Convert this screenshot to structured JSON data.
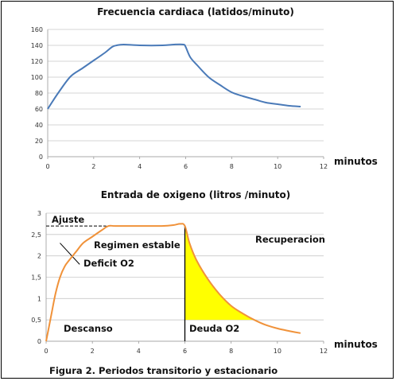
{
  "chart_data": [
    {
      "type": "line",
      "title": "Frecuencia cardiaca (latidos/minuto)",
      "xlabel": "minutos",
      "ylabel": "",
      "xlim": [
        0,
        12
      ],
      "ylim": [
        0,
        160
      ],
      "xticks": [
        0,
        2,
        4,
        6,
        8,
        10,
        12
      ],
      "yticks": [
        0,
        20,
        40,
        60,
        80,
        100,
        120,
        140,
        160
      ],
      "grid": true,
      "line_color": "#4a7ab8",
      "series": [
        {
          "x": [
            0,
            0.5,
            1,
            1.5,
            2,
            2.5,
            2.8,
            3,
            3.3,
            4,
            5,
            5.5,
            5.9,
            6,
            6.2,
            6.5,
            7,
            7.5,
            8,
            8.5,
            9,
            9.5,
            10,
            10.5,
            11
          ],
          "values": [
            60,
            82,
            101,
            111,
            121,
            131,
            138,
            140,
            141,
            140,
            140,
            141,
            141,
            138,
            125,
            115,
            100,
            90,
            81,
            76,
            72,
            68,
            66,
            64,
            63
          ]
        }
      ]
    },
    {
      "type": "area",
      "title": "Entrada de oxigeno (litros /minuto)",
      "xlabel": "minutos",
      "ylabel": "",
      "xlim": [
        0,
        12
      ],
      "ylim": [
        0,
        3
      ],
      "xticks": [
        0,
        2,
        4,
        6,
        8,
        10,
        12
      ],
      "yticks": [
        "0",
        "0,5",
        "1",
        "1,5",
        "2",
        "2,5",
        "3"
      ],
      "grid": true,
      "line_color": "#f0923a",
      "fill_color": "#ffff00",
      "series": [
        {
          "x": [
            0,
            0.2,
            0.4,
            0.6,
            0.8,
            1,
            1.3,
            1.6,
            2,
            2.4,
            2.7,
            3,
            4,
            5,
            5.5,
            5.8,
            6,
            6.2,
            6.5,
            7,
            7.5,
            8,
            8.5,
            9,
            9.5,
            10,
            10.5,
            11
          ],
          "values": [
            0,
            0.55,
            1.1,
            1.5,
            1.75,
            1.9,
            2.1,
            2.3,
            2.45,
            2.6,
            2.7,
            2.7,
            2.7,
            2.7,
            2.72,
            2.75,
            2.7,
            2.3,
            1.9,
            1.45,
            1.1,
            0.83,
            0.65,
            0.5,
            0.38,
            0.3,
            0.24,
            0.19
          ]
        }
      ],
      "shaded_region": {
        "x_from": 6,
        "x_to": 9,
        "y_floor": 0.5,
        "label": "Deuda O2"
      },
      "ajuste_level": 2.7,
      "divider_x": 6,
      "annotations": {
        "ajuste": "Ajuste",
        "regimen": "Regimen estable",
        "deficit": "Deficit O2",
        "recuperacion": "Recuperacion",
        "descanso": "Descanso"
      }
    }
  ],
  "caption": "Figura 2. Periodos transitorio y estacionario"
}
